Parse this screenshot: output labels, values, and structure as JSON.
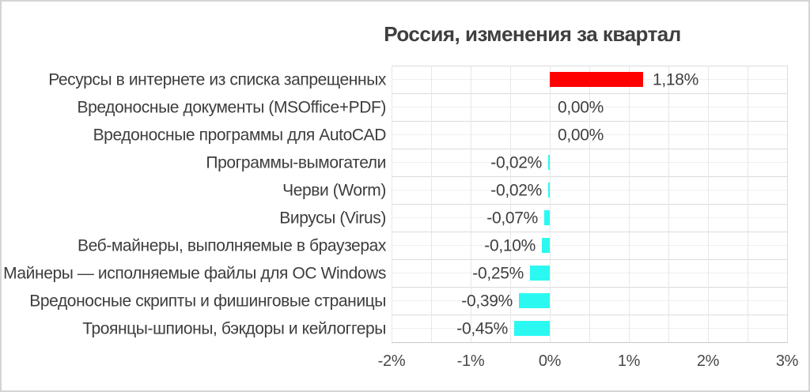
{
  "title": "Россия, изменения за квартал",
  "chart_data": {
    "type": "bar",
    "orientation": "horizontal",
    "title": "Россия, изменения за квартал",
    "categories": [
      "Ресурсы в интернете из списка запрещенных",
      "Вредоносные документы (MSOffice+PDF)",
      "Вредоносные программы для AutoCAD",
      "Программы-вымогатели",
      "Черви (Worm)",
      "Вирусы (Virus)",
      "Веб-майнеры, выполняемые в браузерах",
      "Майнеры — исполняемые файлы для ОС Windows",
      "Вредоносные скрипты и фишинговые страницы",
      "Троянцы-шпионы, бэкдоры и кейлоггеры"
    ],
    "values": [
      1.18,
      0.0,
      0.0,
      -0.02,
      -0.02,
      -0.07,
      -0.1,
      -0.25,
      -0.39,
      -0.45
    ],
    "value_labels": [
      "1,18%",
      "0,00%",
      "0,00%",
      "-0,02%",
      "-0,02%",
      "-0,07%",
      "-0,10%",
      "-0,25%",
      "-0,39%",
      "-0,45%"
    ],
    "x_ticks": [
      "-2%",
      "-1%",
      "0%",
      "1%",
      "2%",
      "3%"
    ],
    "xlim": [
      -2,
      3
    ],
    "xlabel": "",
    "ylabel": "",
    "grid": true,
    "legend": false,
    "positive_color": "#ff0000",
    "negative_color": "#2bf9f1"
  }
}
